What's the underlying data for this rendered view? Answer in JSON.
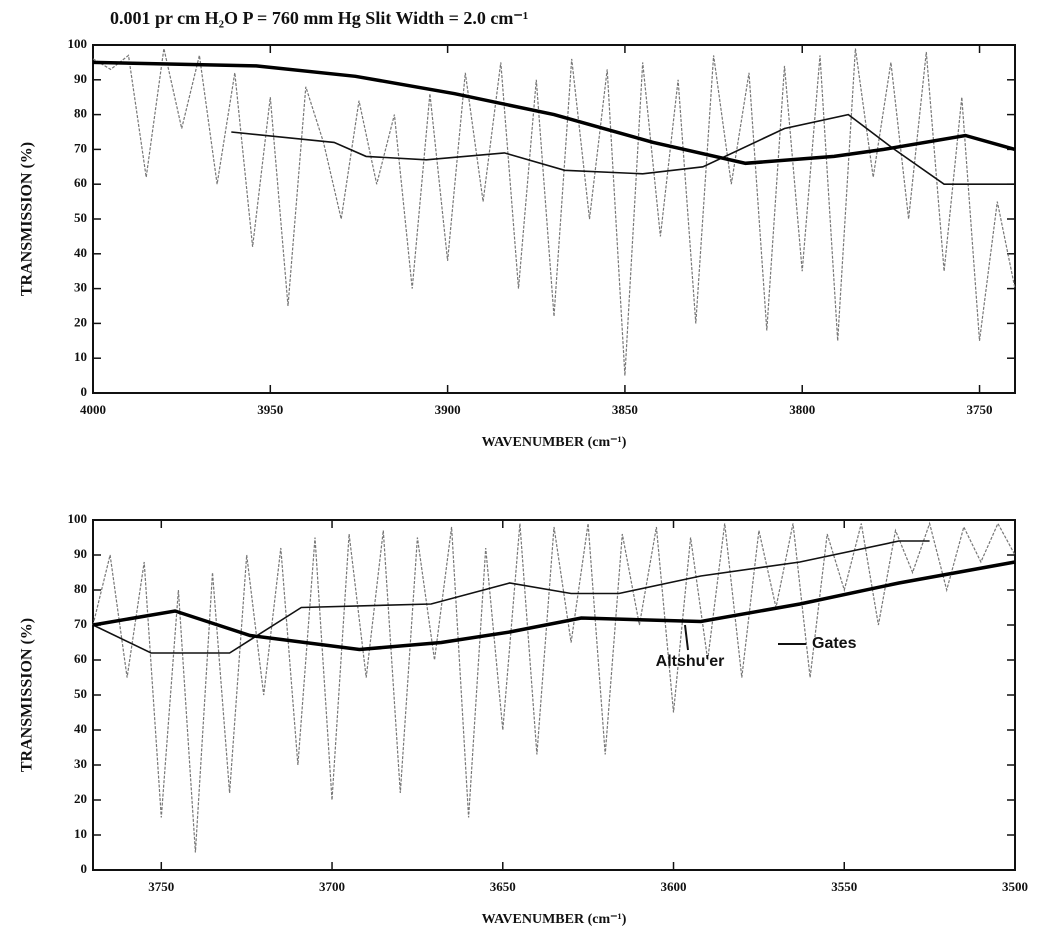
{
  "chart_data": [
    {
      "type": "line",
      "title": "0.001 pr cm H₂O   P = 760 mm Hg   Slit Width = 2.0 cm⁻¹",
      "x_label": "WAVENUMBER (cm⁻¹)",
      "y_label": "TRANSMISSION (%)",
      "xlim": [
        4000,
        3740
      ],
      "ylim": [
        0,
        100
      ],
      "xticks": [
        4000,
        3950,
        3900,
        3850,
        3800,
        3750
      ],
      "yticks": [
        0,
        10,
        20,
        30,
        40,
        50,
        60,
        70,
        80,
        90,
        100
      ],
      "series": [
        {
          "color": "#777777",
          "x": [
            4000,
            3995,
            3990,
            3985,
            3980,
            3975,
            3970,
            3965,
            3960,
            3955,
            3950,
            3945,
            3940,
            3935,
            3930,
            3925,
            3920,
            3915,
            3910,
            3905,
            3900,
            3895,
            3890,
            3885,
            3880,
            3875,
            3870,
            3865,
            3860,
            3855,
            3850,
            3845,
            3840,
            3835,
            3830,
            3825,
            3820,
            3815,
            3810,
            3805,
            3800,
            3795,
            3790,
            3785,
            3780,
            3775,
            3770,
            3765,
            3760,
            3755,
            3750,
            3745,
            3740
          ],
          "values": [
            96,
            93,
            97,
            62,
            99,
            76,
            97,
            60,
            92,
            42,
            85,
            25,
            88,
            72,
            50,
            84,
            60,
            80,
            30,
            86,
            38,
            92,
            55,
            95,
            30,
            90,
            22,
            96,
            50,
            93,
            5,
            95,
            45,
            90,
            20,
            97,
            60,
            92,
            18,
            94,
            35,
            97,
            15,
            99,
            62,
            95,
            50,
            98,
            35,
            85,
            15,
            55,
            30
          ]
        },
        {
          "color": "#111111",
          "x": [
            3961,
            3932,
            3923,
            3906,
            3884,
            3867,
            3845,
            3828,
            3805,
            3787,
            3774,
            3760,
            3740
          ],
          "values": [
            75,
            72,
            68,
            67,
            69,
            64,
            63,
            65,
            76,
            80,
            70,
            60,
            60
          ]
        },
        {
          "color": "#000000",
          "x": [
            4000,
            3954,
            3926,
            3898,
            3870,
            3842,
            3816,
            3791,
            3777,
            3754,
            3740
          ],
          "values": [
            95,
            94,
            91,
            86,
            80,
            72,
            66,
            68,
            70,
            74,
            70
          ]
        }
      ]
    },
    {
      "type": "line",
      "x_label": "WAVENUMBER (cm⁻¹)",
      "y_label": "TRANSMISSION (%)",
      "xlim": [
        3770,
        3500
      ],
      "ylim": [
        0,
        100
      ],
      "xticks": [
        3750,
        3700,
        3650,
        3600,
        3550,
        3500
      ],
      "yticks": [
        0,
        10,
        20,
        30,
        40,
        50,
        60,
        70,
        80,
        90,
        100
      ],
      "series": [
        {
          "color": "#777777",
          "x": [
            3770,
            3765,
            3760,
            3755,
            3750,
            3745,
            3740,
            3735,
            3730,
            3725,
            3720,
            3715,
            3710,
            3705,
            3700,
            3695,
            3690,
            3685,
            3680,
            3675,
            3670,
            3665,
            3660,
            3655,
            3650,
            3645,
            3640,
            3635,
            3630,
            3625,
            3620,
            3615,
            3610,
            3605,
            3600,
            3595,
            3590,
            3585,
            3580,
            3575,
            3570,
            3565,
            3560,
            3555,
            3550,
            3545,
            3540,
            3535,
            3530,
            3525,
            3520,
            3515,
            3510,
            3505,
            3500
          ],
          "values": [
            70,
            90,
            55,
            88,
            15,
            80,
            5,
            85,
            22,
            90,
            50,
            92,
            30,
            95,
            20,
            96,
            55,
            97,
            22,
            95,
            60,
            98,
            15,
            92,
            40,
            99,
            33,
            98,
            65,
            99,
            33,
            96,
            70,
            98,
            45,
            95,
            60,
            99,
            55,
            97,
            75,
            99,
            55,
            96,
            80,
            99,
            70,
            97,
            85,
            99,
            80,
            98,
            88,
            99,
            90
          ]
        },
        {
          "name": "Gates",
          "color": "#111111",
          "x": [
            3770,
            3753,
            3730,
            3709,
            3671,
            3648,
            3630,
            3616,
            3592,
            3563,
            3534,
            3525
          ],
          "values": [
            70,
            62,
            62,
            75,
            76,
            82,
            79,
            79,
            84,
            88,
            94,
            94
          ]
        },
        {
          "name": "Altshu'er",
          "color": "#000000",
          "x": [
            3770,
            3746,
            3724,
            3692,
            3668,
            3648,
            3627,
            3592,
            3563,
            3534,
            3500
          ],
          "values": [
            70,
            74,
            67,
            63,
            65,
            68,
            72,
            71,
            76,
            82,
            88
          ]
        }
      ]
    }
  ]
}
